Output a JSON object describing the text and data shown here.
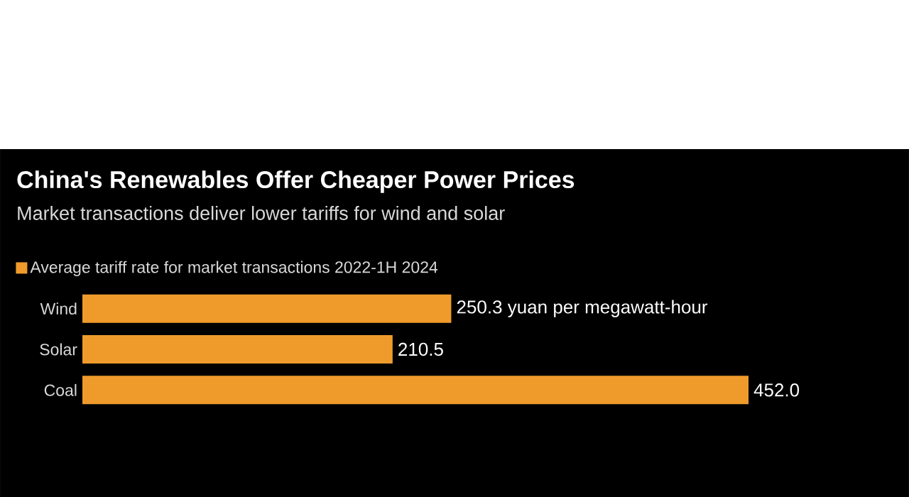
{
  "chart_data": {
    "type": "bar",
    "orientation": "horizontal",
    "title": "China's Renewables Offer Cheaper Power Prices",
    "subtitle": "Market transactions deliver lower tariffs for wind and solar",
    "categories": [
      "Wind",
      "Solar",
      "Coal"
    ],
    "series": [
      {
        "name": "Average tariff rate for market transactions 2022-1H 2024",
        "color": "#ef9b2c",
        "values": [
          250.3,
          210.5,
          452.0
        ],
        "value_labels": [
          "250.3 yuan per megawatt-hour",
          "210.5",
          "452.0"
        ]
      }
    ],
    "legend": "top left"
  }
}
